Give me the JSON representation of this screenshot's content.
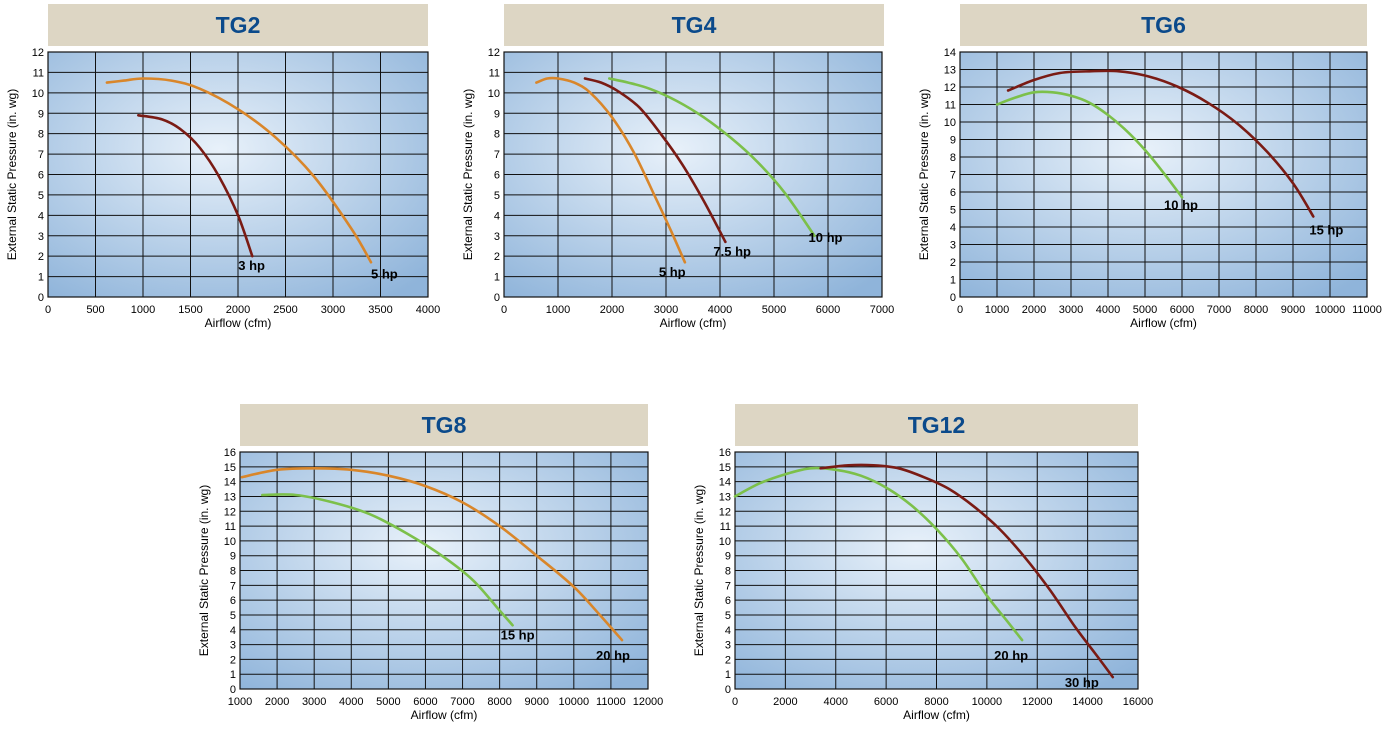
{
  "colors": {
    "title_bg": "#ddd6c4",
    "title_text": "#0b4a8b",
    "plot_bg_center": "#e8f1fa",
    "plot_bg_edge": "#8fb4da",
    "grid": "#111111",
    "orange": "#d9862a",
    "maroon": "#7a1b14",
    "green": "#7cc04a"
  },
  "chart_data": [
    {
      "type": "line",
      "title": "TG2",
      "xlabel": "Airflow (cfm)",
      "ylabel": "External Static Pressure (in. wg)",
      "xlim": [
        0,
        4000
      ],
      "ylim": [
        0,
        12
      ],
      "xticks": [
        0,
        500,
        1000,
        1500,
        2000,
        2500,
        3000,
        3500,
        4000
      ],
      "yticks": [
        0,
        1,
        2,
        3,
        4,
        5,
        6,
        7,
        8,
        9,
        10,
        11,
        12
      ],
      "grid": true,
      "series": [
        {
          "name": "3 hp",
          "color": "maroon",
          "x": [
            950,
            1200,
            1400,
            1600,
            1800,
            2000,
            2150
          ],
          "y": [
            8.9,
            8.7,
            8.2,
            7.3,
            5.9,
            4.0,
            2.0
          ]
        },
        {
          "name": "5 hp",
          "color": "orange",
          "x": [
            620,
            800,
            1000,
            1300,
            1600,
            2000,
            2400,
            2800,
            3200,
            3400
          ],
          "y": [
            10.5,
            10.6,
            10.7,
            10.6,
            10.2,
            9.2,
            7.8,
            5.9,
            3.3,
            1.7
          ]
        }
      ]
    },
    {
      "type": "line",
      "title": "TG4",
      "xlabel": "Airflow (cfm)",
      "ylabel": "External Static Pressure (in. wg)",
      "xlim": [
        0,
        7000
      ],
      "ylim": [
        0,
        12
      ],
      "xticks": [
        0,
        1000,
        2000,
        3000,
        4000,
        5000,
        6000,
        7000
      ],
      "yticks": [
        0,
        1,
        2,
        3,
        4,
        5,
        6,
        7,
        8,
        9,
        10,
        11,
        12
      ],
      "grid": true,
      "series": [
        {
          "name": "5 hp",
          "color": "orange",
          "x": [
            600,
            800,
            1000,
            1300,
            1600,
            2000,
            2400,
            2800,
            3100,
            3350
          ],
          "y": [
            10.5,
            10.7,
            10.7,
            10.5,
            10.0,
            8.8,
            7.1,
            4.9,
            3.2,
            1.7
          ]
        },
        {
          "name": "7.5 hp",
          "color": "maroon",
          "x": [
            1500,
            1800,
            2100,
            2500,
            2900,
            3300,
            3700,
            4100
          ],
          "y": [
            10.7,
            10.5,
            10.1,
            9.3,
            8.0,
            6.5,
            4.7,
            2.7
          ]
        },
        {
          "name": "10 hp",
          "color": "green",
          "x": [
            1950,
            2300,
            2700,
            3200,
            3700,
            4200,
            4700,
            5200,
            5750
          ],
          "y": [
            10.7,
            10.5,
            10.2,
            9.6,
            8.8,
            7.8,
            6.6,
            5.1,
            3.0
          ]
        }
      ]
    },
    {
      "type": "line",
      "title": "TG6",
      "xlabel": "Airflow (cfm)",
      "ylabel": "External Static Pressure (in. wg)",
      "xlim": [
        0,
        11000
      ],
      "ylim": [
        0,
        14
      ],
      "xticks": [
        0,
        1000,
        2000,
        3000,
        4000,
        5000,
        6000,
        7000,
        8000,
        9000,
        10000,
        11000
      ],
      "yticks": [
        0,
        1,
        2,
        3,
        4,
        5,
        6,
        7,
        8,
        9,
        10,
        11,
        12,
        13,
        14
      ],
      "grid": true,
      "series": [
        {
          "name": "10 hp",
          "color": "green",
          "x": [
            1000,
            1500,
            2000,
            2500,
            3000,
            3500,
            4000,
            4500,
            5000,
            5500,
            6000
          ],
          "y": [
            11.0,
            11.4,
            11.7,
            11.7,
            11.5,
            11.1,
            10.4,
            9.5,
            8.4,
            7.1,
            5.7
          ]
        },
        {
          "name": "15 hp",
          "color": "maroon",
          "x": [
            1300,
            2000,
            2700,
            3500,
            4300,
            5100,
            5900,
            6700,
            7500,
            8300,
            9000,
            9550
          ],
          "y": [
            11.8,
            12.4,
            12.8,
            12.9,
            12.9,
            12.6,
            12.0,
            11.1,
            9.9,
            8.3,
            6.5,
            4.6
          ]
        }
      ]
    },
    {
      "type": "line",
      "title": "TG8",
      "xlabel": "Airflow (cfm)",
      "ylabel": "External Static Pressure (in. wg)",
      "xlim": [
        1000,
        12000
      ],
      "ylim": [
        0,
        16
      ],
      "xticks": [
        1000,
        2000,
        3000,
        4000,
        5000,
        6000,
        7000,
        8000,
        9000,
        10000,
        11000,
        12000
      ],
      "yticks": [
        0,
        1,
        2,
        3,
        4,
        5,
        6,
        7,
        8,
        9,
        10,
        11,
        12,
        13,
        14,
        15,
        16
      ],
      "grid": true,
      "series": [
        {
          "name": "15 hp",
          "color": "green",
          "x": [
            1600,
            2500,
            3500,
            4500,
            5500,
            6500,
            7300,
            8000,
            8350
          ],
          "y": [
            13.1,
            13.1,
            12.6,
            11.8,
            10.5,
            8.9,
            7.3,
            5.3,
            4.3
          ]
        },
        {
          "name": "20 hp",
          "color": "orange",
          "x": [
            1050,
            2000,
            3000,
            4000,
            5000,
            6000,
            7000,
            8000,
            9000,
            10000,
            10700,
            11300
          ],
          "y": [
            14.3,
            14.8,
            14.9,
            14.8,
            14.4,
            13.7,
            12.6,
            11.0,
            9.0,
            6.9,
            5.0,
            3.3
          ]
        }
      ]
    },
    {
      "type": "line",
      "title": "TG12",
      "xlabel": "Airflow (cfm)",
      "ylabel": "External Static Pressure (in. wg)",
      "xlim": [
        0,
        16000
      ],
      "ylim": [
        0,
        16
      ],
      "xticks": [
        0,
        2000,
        4000,
        6000,
        8000,
        10000,
        12000,
        14000,
        16000
      ],
      "yticks": [
        0,
        1,
        2,
        3,
        4,
        5,
        6,
        7,
        8,
        9,
        10,
        11,
        12,
        13,
        14,
        15,
        16
      ],
      "grid": true,
      "series": [
        {
          "name": "20 hp",
          "color": "green",
          "x": [
            0,
            1000,
            2000,
            3000,
            4000,
            5000,
            6000,
            7000,
            8000,
            9000,
            10000,
            10800,
            11400
          ],
          "y": [
            13.0,
            13.9,
            14.5,
            14.9,
            14.8,
            14.4,
            13.6,
            12.4,
            10.8,
            8.8,
            6.3,
            4.6,
            3.3
          ]
        },
        {
          "name": "30 hp",
          "color": "maroon",
          "x": [
            3400,
            4500,
            5500,
            6500,
            7500,
            8500,
            9500,
            10500,
            11500,
            12500,
            13500,
            14300,
            15000
          ],
          "y": [
            14.9,
            15.1,
            15.1,
            14.9,
            14.3,
            13.5,
            12.3,
            10.8,
            8.9,
            6.7,
            4.2,
            2.4,
            0.8
          ]
        }
      ]
    }
  ]
}
